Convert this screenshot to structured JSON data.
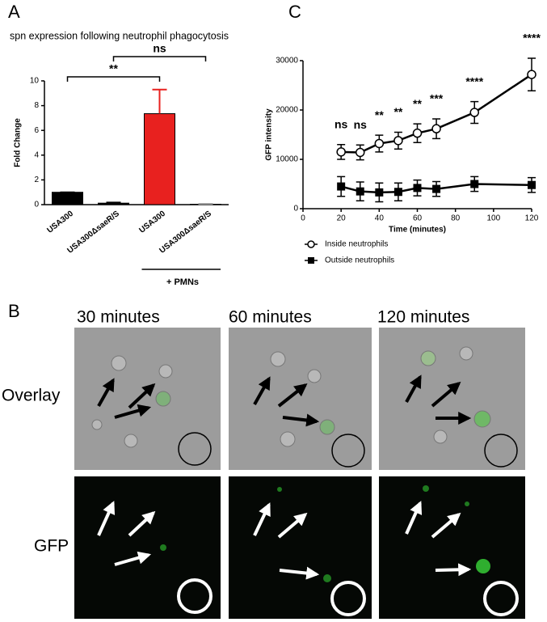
{
  "panel_labels": [
    "A",
    "B",
    "C"
  ],
  "chart_data": [
    {
      "type": "bar",
      "title": "spn expression following neutrophil phagocytosis",
      "ylabel": "Fold Change",
      "categories": [
        "USA300",
        "USA300ΔsaeR/S",
        "USA300",
        "USA300ΔsaeR/S"
      ],
      "values": [
        1.0,
        0.12,
        7.35,
        0.03
      ],
      "errors": [
        0.0,
        0.05,
        1.95,
        0.02
      ],
      "colors": [
        "#000000",
        "#000000",
        "#e8211f",
        "#888888"
      ],
      "ylim": [
        0,
        10
      ],
      "yticks": [
        0,
        2,
        4,
        6,
        8,
        10
      ],
      "brackets": [
        "**",
        "ns"
      ],
      "group_label": "+ PMNs"
    },
    {
      "type": "line",
      "xlabel": "Time (minutes)",
      "ylabel": "GFP intensity",
      "x": [
        20,
        30,
        40,
        50,
        60,
        70,
        90,
        120
      ],
      "series": [
        {
          "name": "Inside neutrophils",
          "color": "#000000",
          "marker": "open-circle",
          "values": [
            11500,
            11400,
            13200,
            13800,
            15300,
            16200,
            19500,
            27200
          ],
          "errors": [
            1500,
            1500,
            1700,
            1700,
            1900,
            2000,
            2200,
            3300
          ]
        },
        {
          "name": "Outside neutrophils",
          "color": "#000000",
          "marker": "filled-square",
          "values": [
            4500,
            3500,
            3300,
            3400,
            4200,
            4000,
            5000,
            4800
          ],
          "errors": [
            2000,
            1900,
            1900,
            1800,
            1600,
            1500,
            1500,
            1500
          ]
        }
      ],
      "annotations": [
        "ns",
        "ns",
        "**",
        "**",
        "**",
        "***",
        "****",
        "****"
      ],
      "xlim": [
        0,
        120
      ],
      "xticks": [
        0,
        20,
        40,
        60,
        80,
        100,
        120
      ],
      "ylim": [
        0,
        30000
      ],
      "yticks": [
        0,
        10000,
        20000,
        30000
      ]
    }
  ],
  "images": {
    "columns": [
      "30 minutes",
      "60 minutes",
      "120 minutes"
    ],
    "rows": [
      "Overlay",
      "GFP"
    ]
  }
}
